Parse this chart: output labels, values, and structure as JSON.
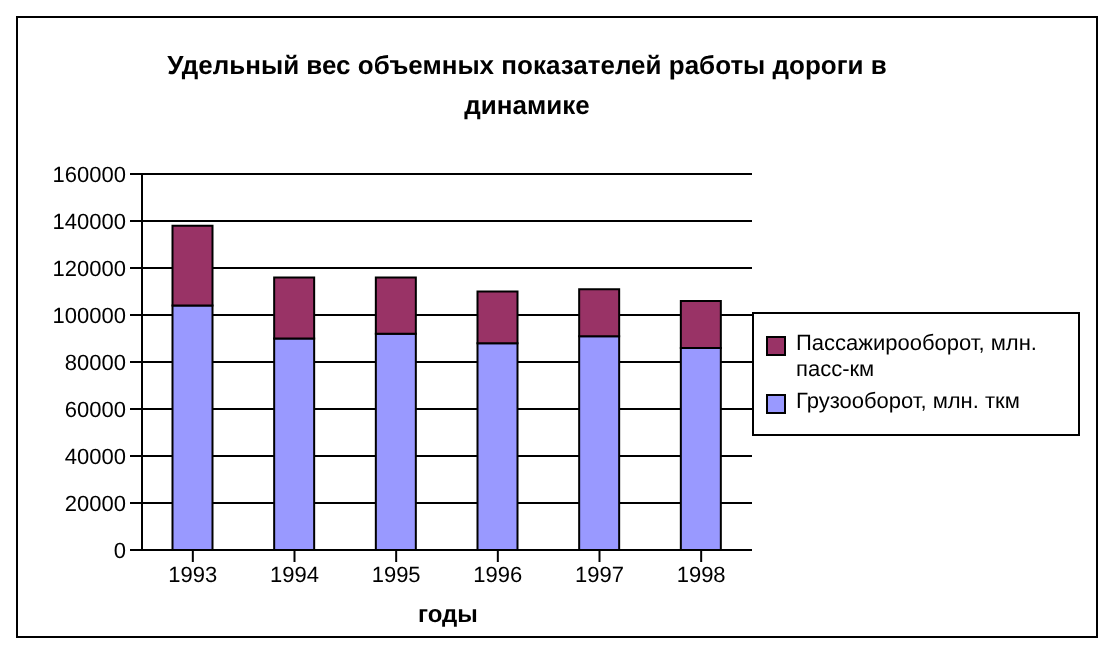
{
  "chart_data": {
    "type": "bar",
    "title": "Удельный вес объемных показателей работы дороги в динамике",
    "xlabel": "годы",
    "categories": [
      "1993",
      "1994",
      "1995",
      "1996",
      "1997",
      "1998"
    ],
    "stacked": true,
    "series": [
      {
        "name": "Грузооборот, млн. ткм",
        "color": "#9999ff",
        "values": [
          104000,
          90000,
          92000,
          88000,
          91000,
          86000
        ]
      },
      {
        "name": "Пассажирооборот, млн. пасс-км",
        "color": "#993366",
        "values": [
          34000,
          26000,
          24000,
          22000,
          20000,
          20000
        ]
      }
    ],
    "ylim": [
      0,
      160000
    ],
    "yticks": [
      0,
      20000,
      40000,
      60000,
      80000,
      100000,
      120000,
      140000,
      160000
    ],
    "grid": "y",
    "legend": "right"
  }
}
